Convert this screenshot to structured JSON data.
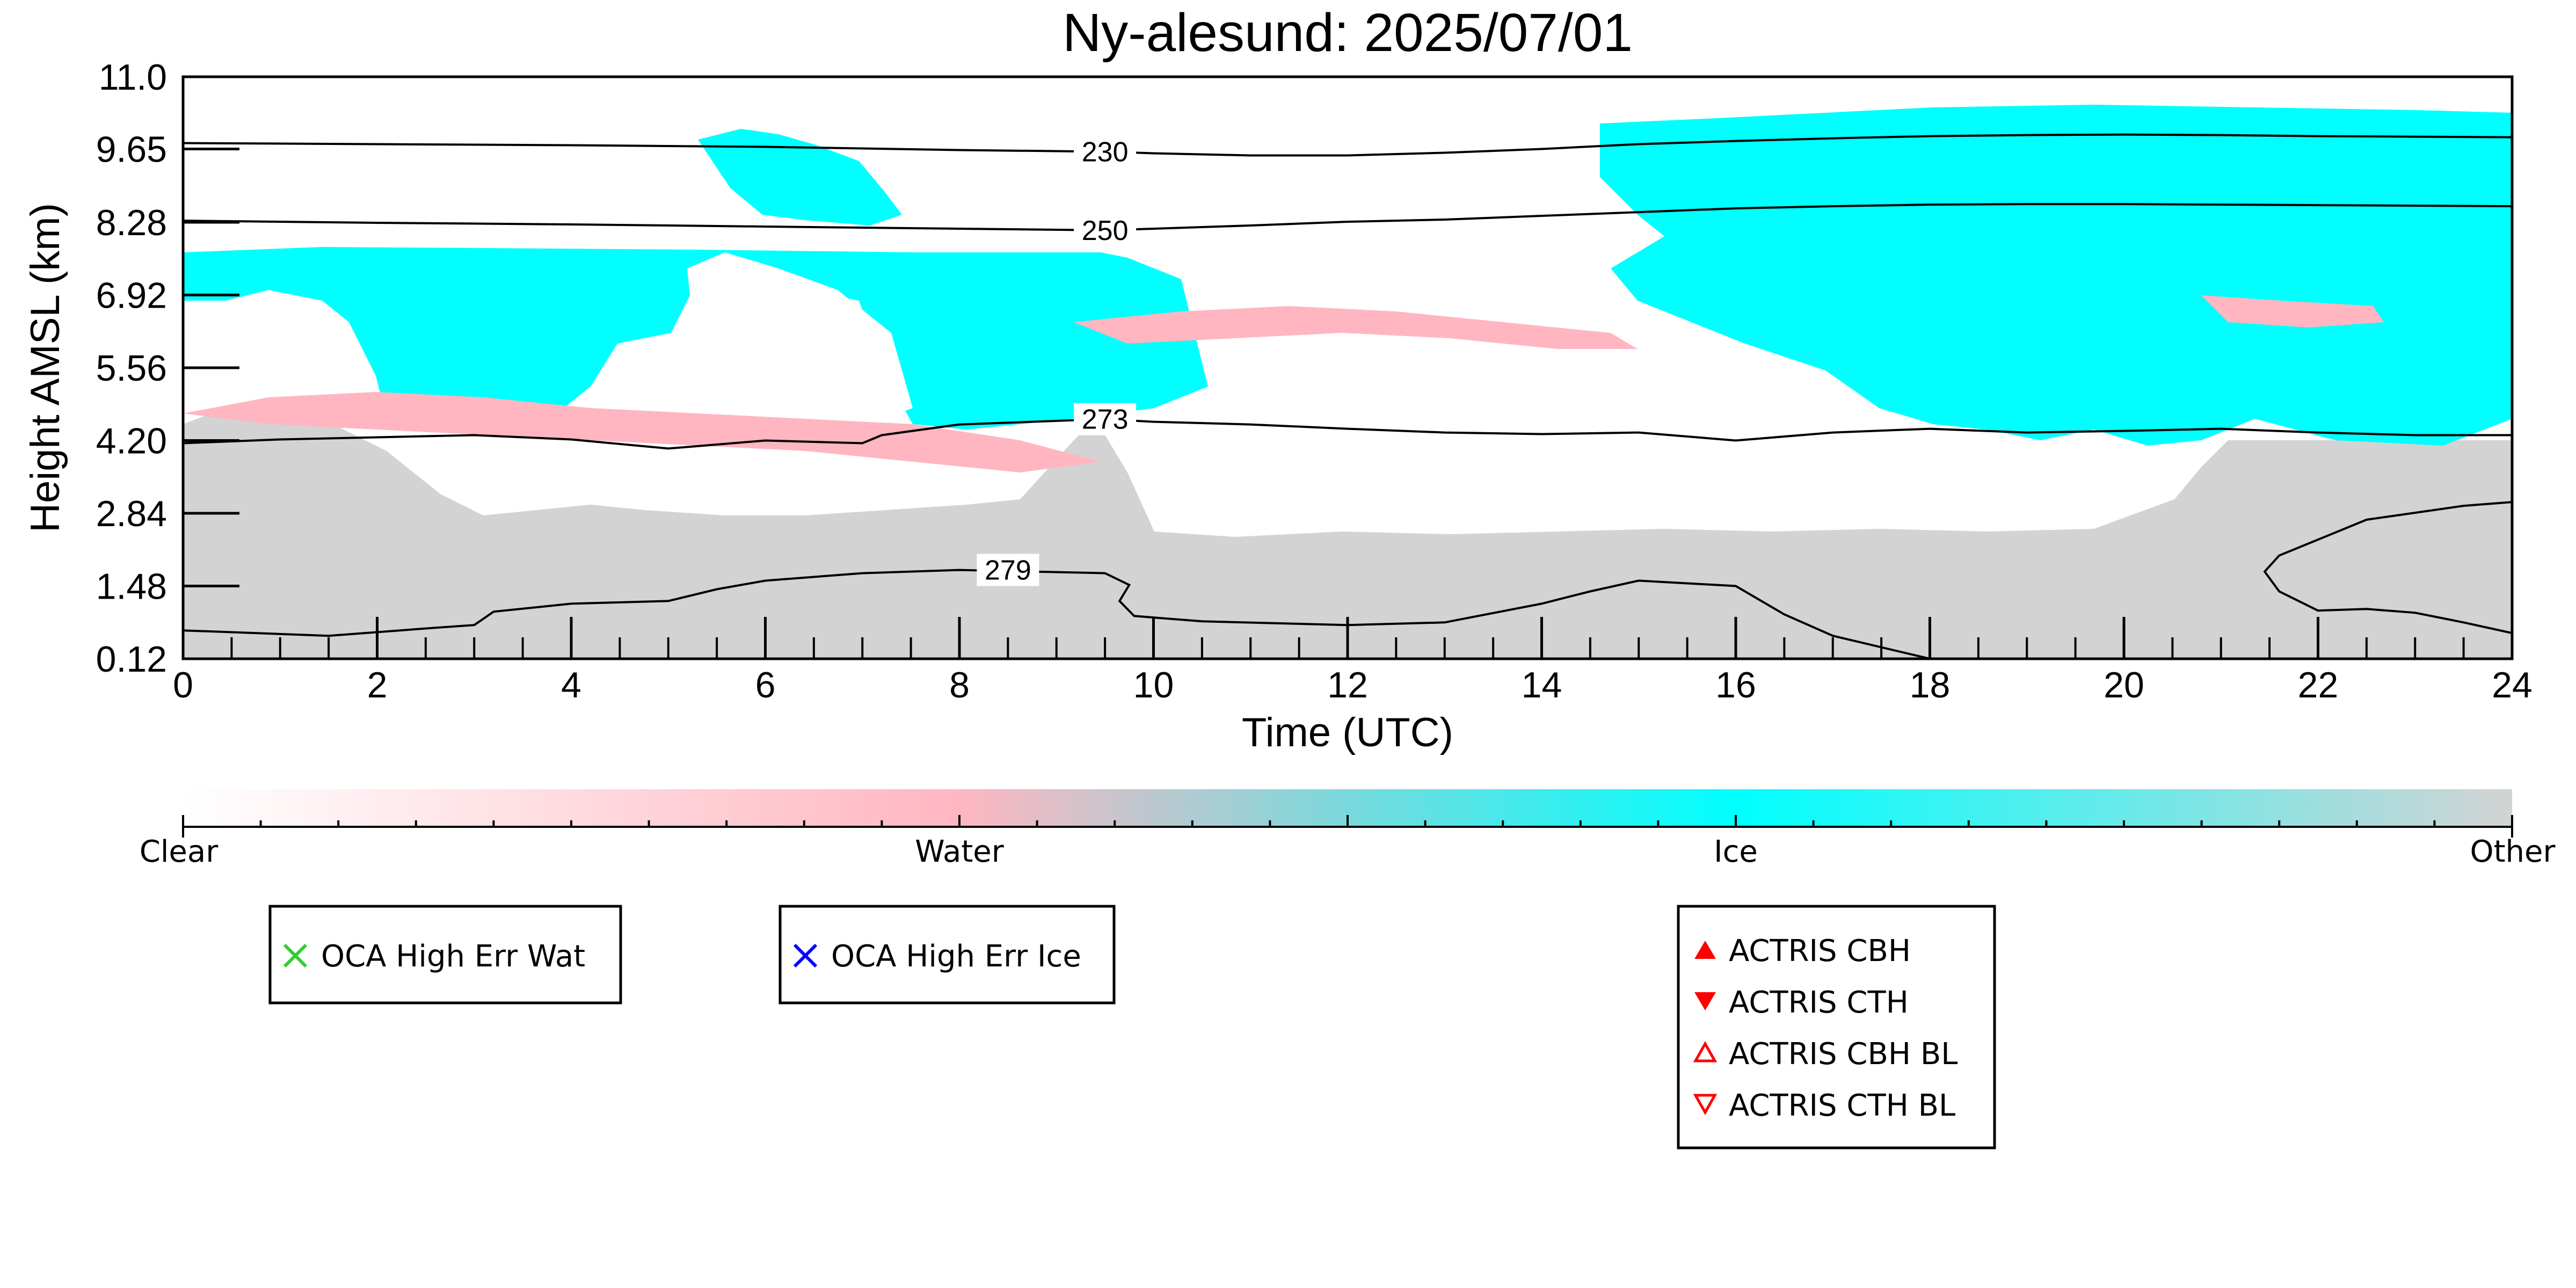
{
  "chart_data": {
    "type": "heatmap",
    "title": "Ny-alesund: 2025/07/01",
    "xlabel": "Time (UTC)",
    "ylabel": "Height AMSL (km)",
    "xlim": [
      0,
      24
    ],
    "ylim": [
      0.12,
      11.0
    ],
    "x_ticks": [
      "0",
      "2",
      "4",
      "6",
      "8",
      "10",
      "12",
      "14",
      "16",
      "18",
      "20",
      "22",
      "24"
    ],
    "y_ticks": [
      "0.12",
      "1.48",
      "2.84",
      "4.20",
      "5.56",
      "6.92",
      "8.28",
      "9.65",
      "11.0"
    ],
    "colorbar": {
      "labels": [
        "Clear",
        "Water",
        "Ice",
        "Other"
      ],
      "colors": [
        "#ffffff",
        "#ffb6c1",
        "#00ffff",
        "#d3d3d3"
      ]
    },
    "contours": [
      {
        "label": "230",
        "x": [
          0,
          2,
          4,
          6,
          8,
          9.5,
          10,
          11,
          12,
          13,
          14,
          15,
          16,
          17,
          18,
          19,
          20,
          21,
          22,
          23,
          24
        ],
        "y": [
          9.76,
          9.74,
          9.72,
          9.69,
          9.63,
          9.6,
          9.57,
          9.53,
          9.53,
          9.58,
          9.65,
          9.74,
          9.8,
          9.85,
          9.89,
          9.91,
          9.92,
          9.91,
          9.89,
          9.88,
          9.87
        ]
      },
      {
        "label": "250",
        "x": [
          0,
          2,
          4,
          6,
          8,
          9.5,
          10,
          11,
          12,
          13,
          14,
          15,
          16,
          17,
          18,
          19,
          20,
          21,
          22,
          23,
          24
        ],
        "y": [
          8.31,
          8.27,
          8.24,
          8.2,
          8.16,
          8.13,
          8.16,
          8.22,
          8.29,
          8.33,
          8.4,
          8.47,
          8.54,
          8.58,
          8.61,
          8.62,
          8.62,
          8.61,
          8.6,
          8.59,
          8.58
        ]
      },
      {
        "label": "273",
        "x": [
          0,
          1,
          2,
          3,
          4,
          5,
          6,
          7,
          7.2,
          8,
          9.5,
          10,
          11,
          12,
          13,
          14,
          15,
          16,
          17,
          18,
          19,
          20,
          21,
          22,
          23,
          24
        ],
        "y": [
          4.15,
          4.22,
          4.26,
          4.3,
          4.22,
          4.05,
          4.2,
          4.15,
          4.3,
          4.5,
          4.6,
          4.55,
          4.5,
          4.42,
          4.35,
          4.32,
          4.35,
          4.2,
          4.35,
          4.42,
          4.35,
          4.38,
          4.42,
          4.35,
          4.3,
          4.3
        ]
      },
      {
        "label": "279",
        "x": [
          0,
          1.5,
          2.6,
          3.0,
          3.2,
          4.0,
          5.0,
          5.5,
          6.0,
          7.0,
          8.0,
          9.5,
          9.75,
          9.65,
          9.8,
          10.5,
          12.0,
          13.0,
          14.0,
          14.5,
          15.0,
          16.0,
          16.5,
          17.0,
          18.0
        ],
        "y": [
          0.65,
          0.55,
          0.7,
          0.75,
          1.0,
          1.15,
          1.2,
          1.42,
          1.58,
          1.72,
          1.78,
          1.72,
          1.5,
          1.2,
          0.92,
          0.82,
          0.75,
          0.8,
          1.15,
          1.38,
          1.58,
          1.48,
          0.95,
          0.55,
          0.12
        ]
      },
      {
        "label": "",
        "x": [
          24,
          23.5,
          22.5,
          21.6,
          21.45,
          21.6,
          21.8,
          22.0,
          22.5,
          23.0,
          23.5,
          24
        ],
        "y": [
          3.05,
          2.98,
          2.72,
          2.05,
          1.75,
          1.38,
          1.2,
          1.02,
          1.05,
          0.98,
          0.8,
          0.6
        ]
      }
    ],
    "legend": {
      "oca_water": "OCA High Err Wat",
      "oca_ice": "OCA High Err Ice",
      "actris": [
        "ACTRIS CBH",
        "ACTRIS CTH",
        "ACTRIS CBH BL",
        "ACTRIS CTH BL"
      ]
    }
  }
}
